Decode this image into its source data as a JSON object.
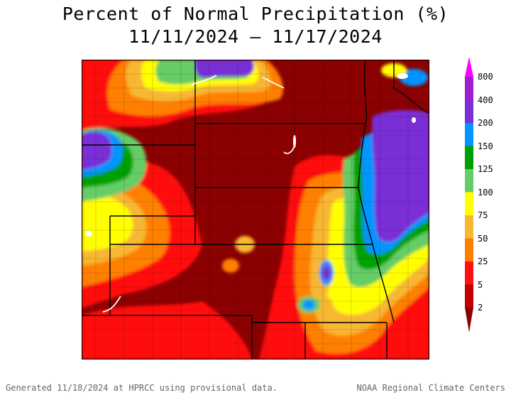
{
  "title": "Percent of Normal Precipitation (%)",
  "date_range": "11/11/2024 – 11/17/2024",
  "legend": {
    "bins": [
      {
        "label": "",
        "color": "#ff00ff"
      },
      {
        "label": "800",
        "color": "#9e1fd0"
      },
      {
        "label": "400",
        "color": "#7a2fd6"
      },
      {
        "label": "200",
        "color": "#0095ff"
      },
      {
        "label": "150",
        "color": "#00a000"
      },
      {
        "label": "125",
        "color": "#66cc66"
      },
      {
        "label": "100",
        "color": "#ffff00"
      },
      {
        "label": "75",
        "color": "#f7b731"
      },
      {
        "label": "50",
        "color": "#ff8000"
      },
      {
        "label": "25",
        "color": "#ff1010"
      },
      {
        "label": "5",
        "color": "#c00000"
      },
      {
        "label": "2",
        "color": "#8b0000"
      }
    ]
  },
  "footer": {
    "left": "Generated 11/18/2024 at HPRCC using provisional data.",
    "right": "NOAA Regional Climate Centers"
  }
}
